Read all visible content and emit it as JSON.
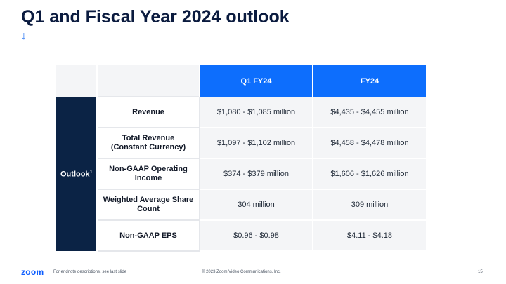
{
  "slide": {
    "title": "Q1 and Fiscal Year 2024 outlook",
    "arrow": "↓"
  },
  "table": {
    "headers": [
      "Q1 FY24",
      "FY24"
    ],
    "side_label": "Outlook",
    "side_label_sup": "1",
    "rows": [
      {
        "label_line1": "Revenue",
        "label_line2": "",
        "q1": "$1,080 - $1,085 million",
        "fy": "$4,435 - $4,455 million"
      },
      {
        "label_line1": "Total Revenue",
        "label_line2": "(Constant Currency)",
        "q1": "$1,097 - $1,102 million",
        "fy": "$4,458 - $4,478 million"
      },
      {
        "label_line1": "Non-GAAP Operating",
        "label_line2": "Income",
        "q1": "$374 - $379 million",
        "fy": "$1,606 - $1,626 million"
      },
      {
        "label_line1": "Weighted Average Share",
        "label_line2": "Count",
        "q1": "304 million",
        "fy": "309 million"
      },
      {
        "label_line1": "Non-GAAP EPS",
        "label_line2": "",
        "q1": "$0.96 - $0.98",
        "fy": "$4.11 - $4.18"
      }
    ]
  },
  "footer": {
    "logo": "zoom",
    "note": "For endnote descriptions, see last slide",
    "copyright": "© 2023 Zoom Video Communications, Inc.",
    "page_number": "15"
  },
  "colors": {
    "header_blue": "#0d6efd",
    "side_navy": "#0b2345",
    "title_navy": "#0b1b3f"
  }
}
